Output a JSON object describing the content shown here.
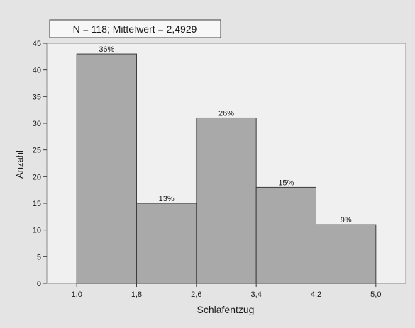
{
  "chart_data": {
    "type": "bar",
    "title": "N = 118; Mittelwert = 2,4929",
    "xlabel": "Schlafentzug",
    "ylabel": "Anzahl",
    "ylim": [
      0,
      45
    ],
    "yticks": [
      "0",
      "5",
      "10",
      "15",
      "20",
      "25",
      "30",
      "35",
      "40",
      "45"
    ],
    "xticks": [
      "1,0",
      "1,8",
      "2,6",
      "3,4",
      "4,2",
      "5,0"
    ],
    "bin_edges": [
      1.0,
      1.8,
      2.6,
      3.4,
      4.2,
      5.0
    ],
    "values": [
      43,
      15,
      31,
      18,
      11
    ],
    "data_labels": [
      "36%",
      "13%",
      "26%",
      "15%",
      "9%"
    ],
    "grid": false,
    "colors": {
      "bar_fill": "#a9a9a9",
      "bar_stroke": "#3c3c3c",
      "plot_bg": "#f0f0f0",
      "frame_bg": "#e4e4e4"
    }
  }
}
